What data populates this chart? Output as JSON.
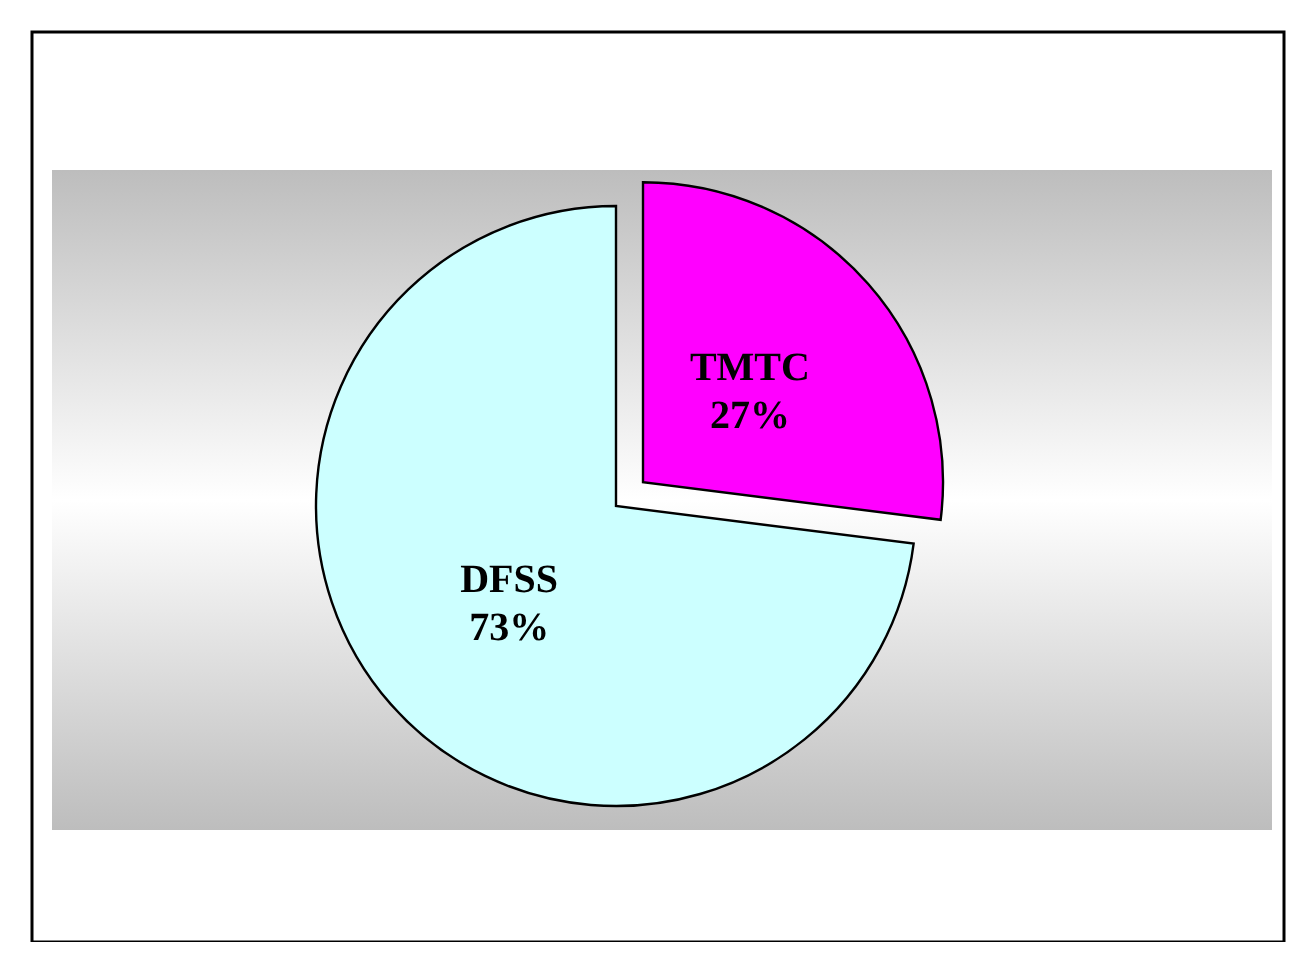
{
  "chart_data": {
    "type": "pie",
    "categories": [
      "TMTC",
      "DFSS"
    ],
    "values": [
      27,
      73
    ],
    "colors": [
      "#ff00ff",
      "#ccffff"
    ],
    "value_labels": [
      "27%",
      "73%"
    ]
  }
}
